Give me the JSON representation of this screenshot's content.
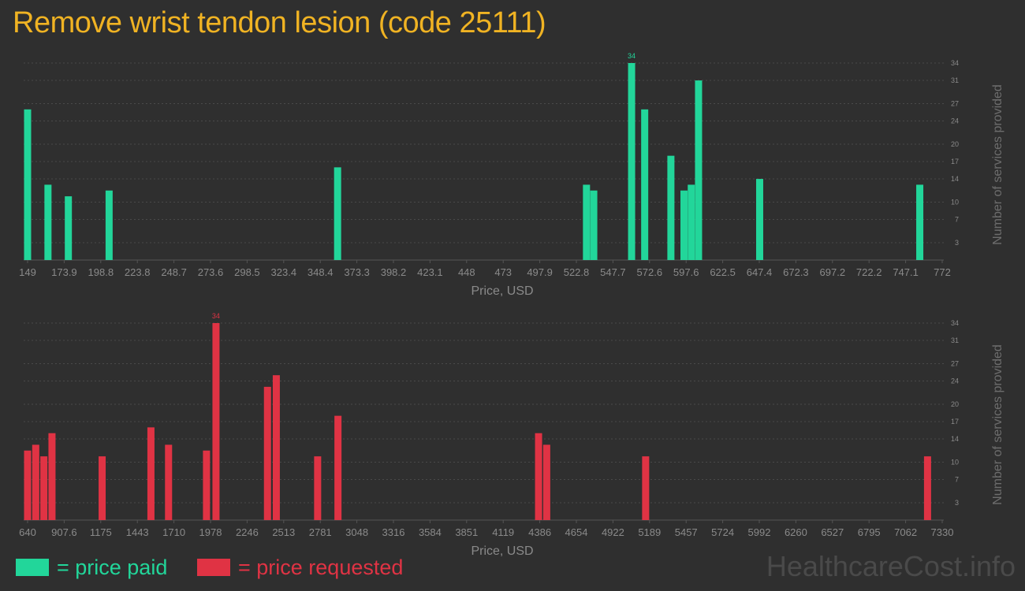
{
  "title": "Remove wrist tendon lesion (code 25111)",
  "colors": {
    "paid": "#22d69a",
    "requested": "#e03344",
    "title": "#f0b323"
  },
  "legend": {
    "paid": "= price paid",
    "requested": "= price requested"
  },
  "watermark": "HealthcareCost.info",
  "chart_data": [
    {
      "type": "bar",
      "name": "price paid",
      "xlabel": "Price, USD",
      "ylabel": "Number of services provided",
      "xlim": [
        149,
        772
      ],
      "ylim": [
        0,
        34
      ],
      "x_ticks": [
        "149",
        "173.9",
        "198.8",
        "223.8",
        "248.7",
        "273.6",
        "298.5",
        "323.4",
        "348.4",
        "373.3",
        "398.2",
        "423.1",
        "448",
        "473",
        "497.9",
        "522.8",
        "547.7",
        "572.6",
        "597.6",
        "622.5",
        "647.4",
        "672.3",
        "697.2",
        "722.2",
        "747.1",
        "772"
      ],
      "y_ticks": [
        "3",
        "7",
        "10",
        "14",
        "17",
        "20",
        "24",
        "27",
        "31",
        "34"
      ],
      "grid": true,
      "max_label": "34",
      "x": [
        149,
        163,
        177,
        205,
        362,
        533,
        538,
        564,
        573,
        591,
        600,
        605,
        610,
        652,
        762
      ],
      "values": [
        26,
        13,
        11,
        12,
        16,
        13,
        12,
        34,
        26,
        18,
        12,
        13,
        31,
        14,
        13
      ]
    },
    {
      "type": "bar",
      "name": "price requested",
      "xlabel": "Price, USD",
      "ylabel": "Number of services provided",
      "xlim": [
        640,
        7330
      ],
      "ylim": [
        0,
        34
      ],
      "x_ticks": [
        "640",
        "907.6",
        "1175",
        "1443",
        "1710",
        "1978",
        "2246",
        "2513",
        "2781",
        "3048",
        "3316",
        "3584",
        "3851",
        "4119",
        "4386",
        "4654",
        "4922",
        "5189",
        "5457",
        "5724",
        "5992",
        "6260",
        "6527",
        "6795",
        "7062",
        "7330"
      ],
      "y_ticks": [
        "3",
        "7",
        "10",
        "14",
        "17",
        "20",
        "24",
        "27",
        "31",
        "34"
      ],
      "grid": true,
      "max_label": "34",
      "x": [
        640,
        700,
        760,
        820,
        1190,
        1550,
        1680,
        1960,
        2030,
        2410,
        2475,
        2780,
        2930,
        4410,
        4470,
        5200,
        7280
      ],
      "values": [
        12,
        13,
        11,
        15,
        11,
        16,
        13,
        12,
        34,
        23,
        25,
        11,
        18,
        15,
        13,
        11,
        11
      ]
    }
  ]
}
